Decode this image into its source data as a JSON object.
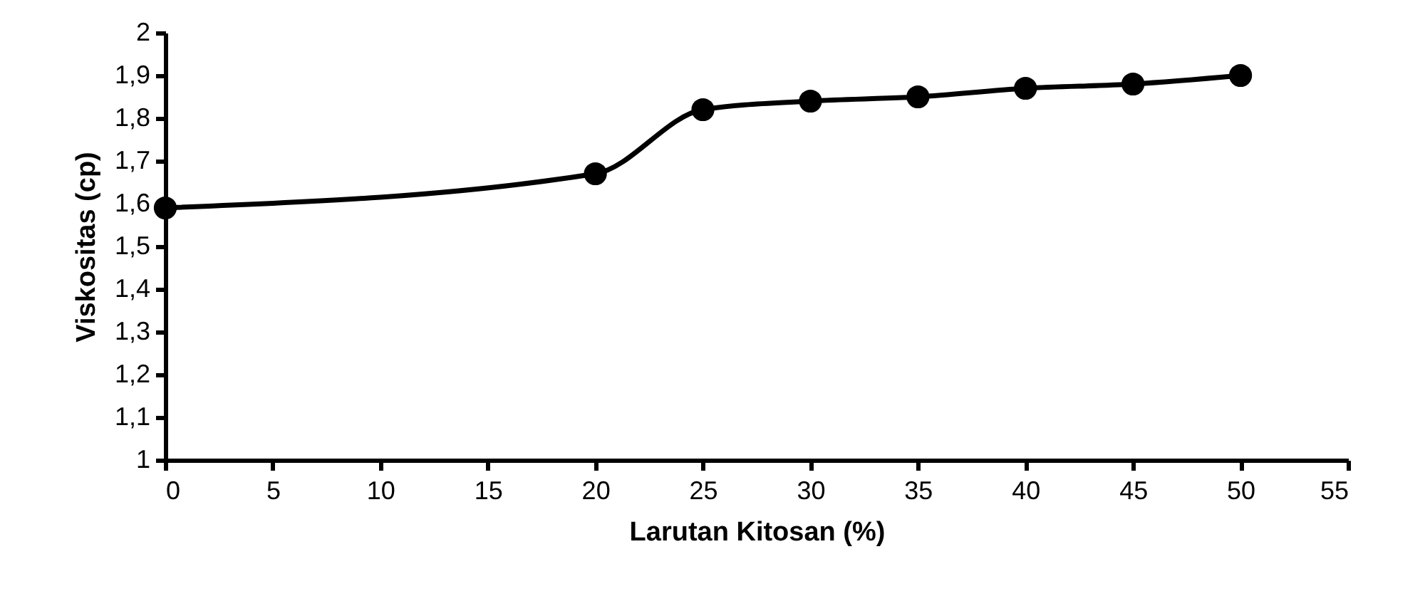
{
  "chart_data": {
    "type": "line",
    "xlabel": "Larutan Kitosan (%)",
    "ylabel": "Viskositas (cp)",
    "x": [
      0,
      20,
      25,
      30,
      35,
      40,
      45,
      50
    ],
    "series": [
      {
        "color": "#000000",
        "values": [
          1.59,
          1.67,
          1.82,
          1.84,
          1.85,
          1.87,
          1.88,
          1.9
        ]
      }
    ],
    "xlim": [
      0,
      55
    ],
    "xticks": [
      0,
      5,
      10,
      15,
      20,
      25,
      30,
      35,
      40,
      45,
      50,
      55
    ],
    "ylim": [
      1,
      2
    ],
    "yticks": [
      1,
      {
        "value": 1.1,
        "label": "1,1"
      },
      {
        "value": 1.2,
        "label": "1,2"
      },
      {
        "value": 1.3,
        "label": "1,3"
      },
      {
        "value": 1.4,
        "label": "1,4"
      },
      {
        "value": 1.5,
        "label": "1,5"
      },
      {
        "value": 1.6,
        "label": "1,6"
      },
      {
        "value": 1.7,
        "label": "1,7"
      },
      {
        "value": 1.8,
        "label": "1,8"
      },
      {
        "value": 1.9,
        "label": "1,9"
      },
      2
    ],
    "grid": false,
    "marker": "circle",
    "line_style": "solid"
  }
}
